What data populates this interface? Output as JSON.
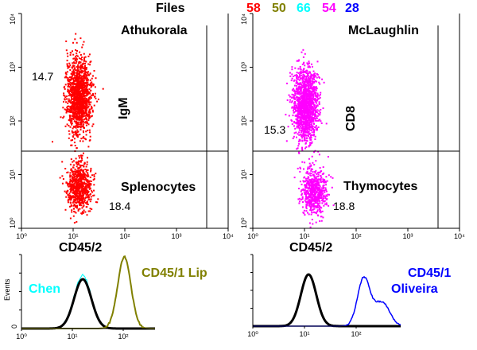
{
  "header": {
    "label": "Files",
    "files": [
      {
        "n": "58",
        "color": "#ff0000"
      },
      {
        "n": "50",
        "color": "#808000"
      },
      {
        "n": "66",
        "color": "#00ffff"
      },
      {
        "n": "54",
        "color": "#ff00ff"
      },
      {
        "n": "28",
        "color": "#0000ff"
      }
    ]
  },
  "chart_data": [
    {
      "type": "scatter",
      "title": "Athukorala",
      "xlabel": "CD45/2",
      "ylabel": "IgM",
      "subtitle": "Splenocytes",
      "xscale": "log",
      "yscale": "log",
      "xlim": [
        1,
        10000
      ],
      "ylim": [
        1,
        10000
      ],
      "xticks": [
        "10⁰",
        "10¹",
        "10²",
        "10³",
        "10⁴"
      ],
      "yticks": [
        "10⁰",
        "10¹",
        "10²",
        "10³",
        "10⁴"
      ],
      "quadrant_percents": {
        "upper_left": "14.7",
        "lower_right": "18.4"
      },
      "color": "#ff0000",
      "clusters": [
        {
          "x_center": 12.5,
          "y_center": 300,
          "n": 1400
        },
        {
          "x_center": 13,
          "y_center": 6,
          "n": 700
        }
      ]
    },
    {
      "type": "scatter",
      "title": "McLaughlin",
      "xlabel": "CD45/2",
      "ylabel": "CD8",
      "subtitle": "Thymocytes",
      "xscale": "log",
      "yscale": "log",
      "xlim": [
        1,
        10000
      ],
      "ylim": [
        1,
        10000
      ],
      "xticks": [
        "10⁰",
        "10¹",
        "10²",
        "10³",
        "10⁴"
      ],
      "yticks": [
        "10⁰",
        "10¹",
        "10²",
        "10³",
        "10⁴"
      ],
      "quadrant_percents": {
        "upper_left": "15.3",
        "lower_right": "18.8"
      },
      "color": "#ff00ff",
      "clusters": [
        {
          "x_center": 10,
          "y_center": 200,
          "n": 1400
        },
        {
          "x_center": 15,
          "y_center": 5,
          "n": 600
        }
      ]
    },
    {
      "type": "line",
      "ylabel": "Events",
      "xscale": "log",
      "xticks": [
        "10⁰",
        "10¹",
        "10²"
      ],
      "yticks": [
        "0"
      ],
      "series": [
        {
          "name": "Chen",
          "color": "#00ffff",
          "peak": 16
        },
        {
          "name": "",
          "color": "#000000",
          "peak": 16
        },
        {
          "name": "CD45/1 Lip",
          "color": "#808000",
          "peak": 105
        }
      ]
    },
    {
      "type": "line",
      "xscale": "log",
      "xticks": [
        "10⁰",
        "10¹",
        "10²"
      ],
      "series": [
        {
          "name": "",
          "color": "#000000",
          "peak": 12
        },
        {
          "name": "CD45/1 Oliveira",
          "color": "#0000ff",
          "peak": 140
        }
      ]
    }
  ]
}
